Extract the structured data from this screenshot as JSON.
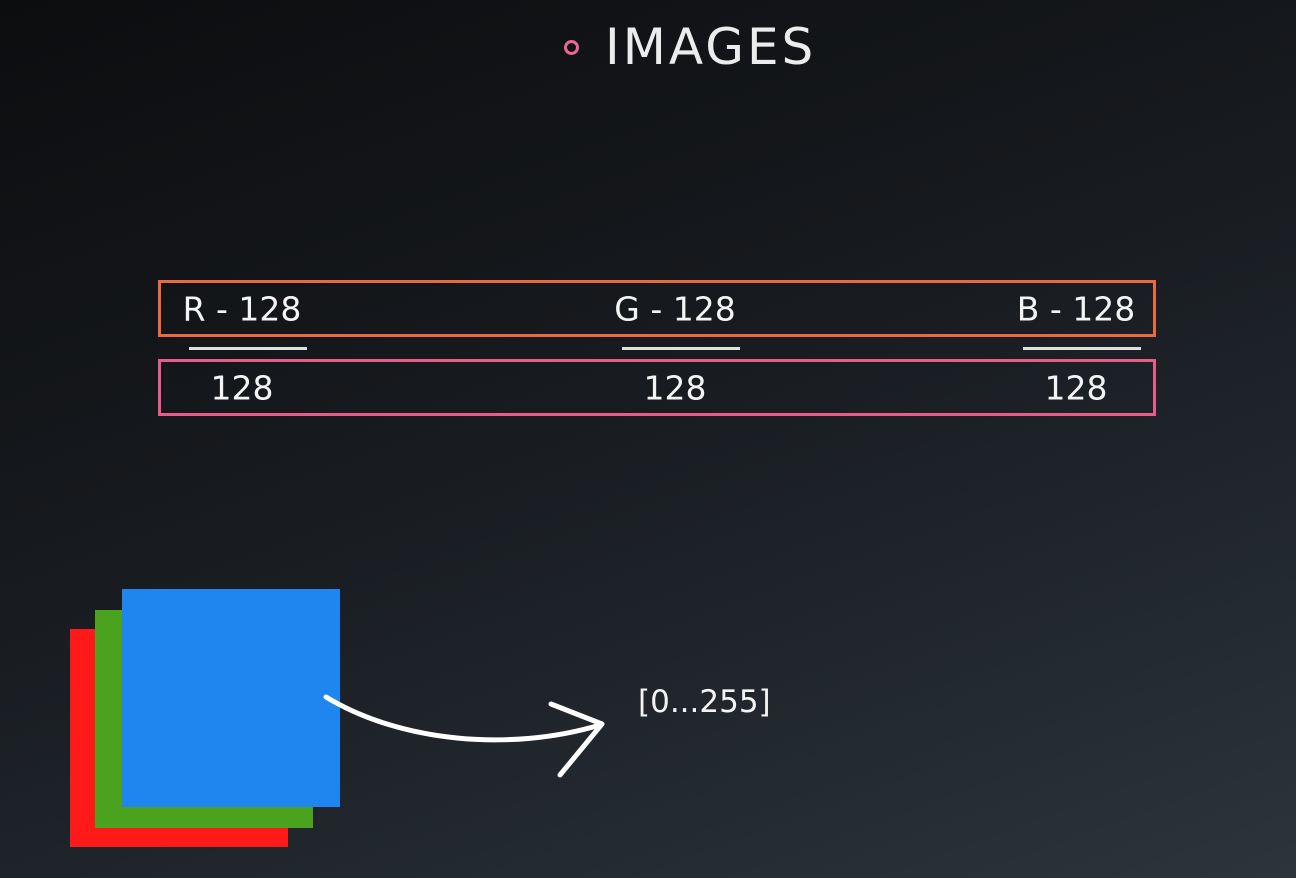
{
  "header": {
    "title": "IMAGES"
  },
  "channels": [
    {
      "label": "R - 128",
      "value": "128",
      "color": "#ff1a1a"
    },
    {
      "label": "G - 128",
      "value": "128",
      "color": "#4aa21f"
    },
    {
      "label": "B - 128",
      "value": "128",
      "color": "#1f86f0"
    }
  ],
  "range_label": "[0...255]",
  "colors": {
    "accent_pink": "#e8698e",
    "label_box_border": "#e86a3e",
    "value_box_border": "#e65c8b",
    "arrow": "#ffffff"
  },
  "icons": {
    "bullet": "bullet-ring-icon",
    "arrow": "curved-arrow-icon"
  }
}
